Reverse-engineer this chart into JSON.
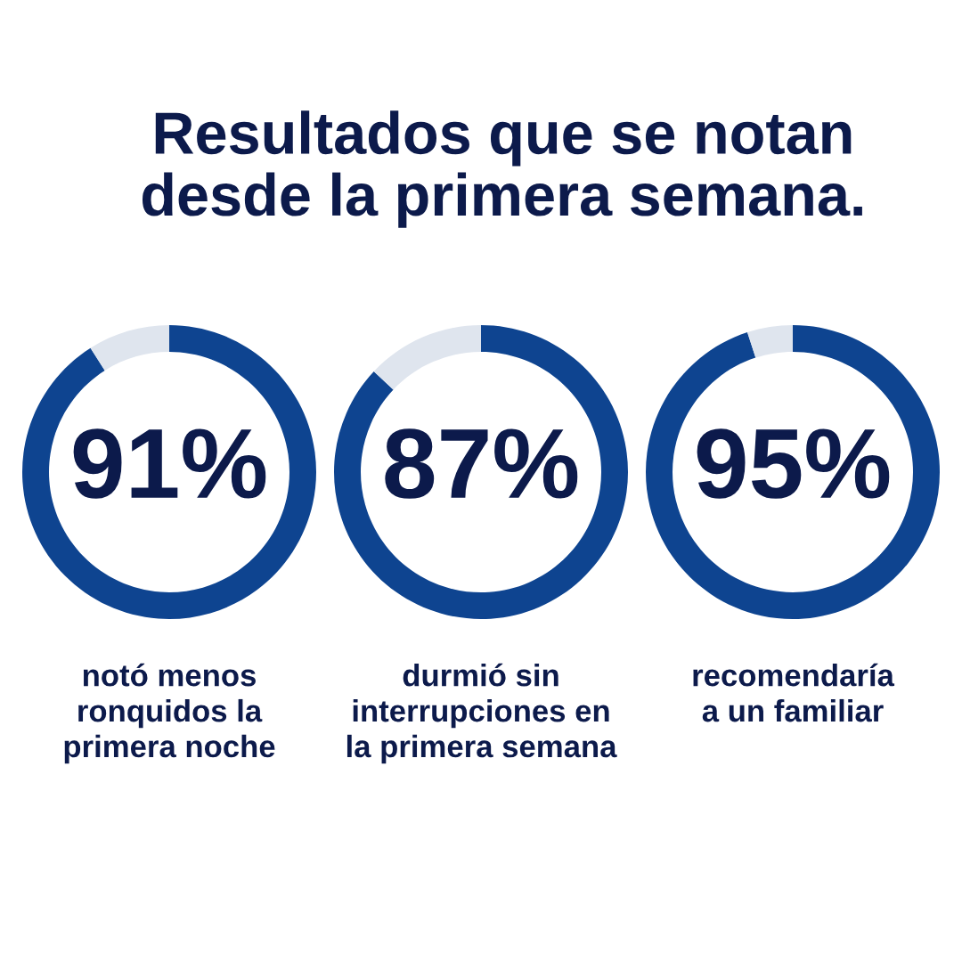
{
  "chart_data": [
    {
      "type": "donut",
      "title": "Resultados que se notan\ndesde la primera semana.",
      "categories": [
        null,
        null
      ],
      "values": [
        91,
        9
      ],
      "colors": [
        "#0e4490",
        "#dfe5ee"
      ],
      "value_labels": [
        "91%",
        null
      ],
      "annotations": [
        "notó menos\nronquidos la\nprimera noche"
      ]
    },
    {
      "type": "donut",
      "categories": [
        null,
        null
      ],
      "values": [
        87,
        13
      ],
      "colors": [
        "#0e4490",
        "#dfe5ee"
      ],
      "value_labels": [
        "87%",
        null
      ],
      "annotations": [
        "durmió sin\ninterrupciones en\nla primera semana"
      ]
    },
    {
      "type": "donut",
      "categories": [
        null,
        null
      ],
      "values": [
        95,
        5
      ],
      "colors": [
        "#0e4490",
        "#dfe5ee"
      ],
      "value_labels": [
        "95%",
        null
      ],
      "annotations": [
        "recomendaría\na un familiar"
      ]
    }
  ]
}
